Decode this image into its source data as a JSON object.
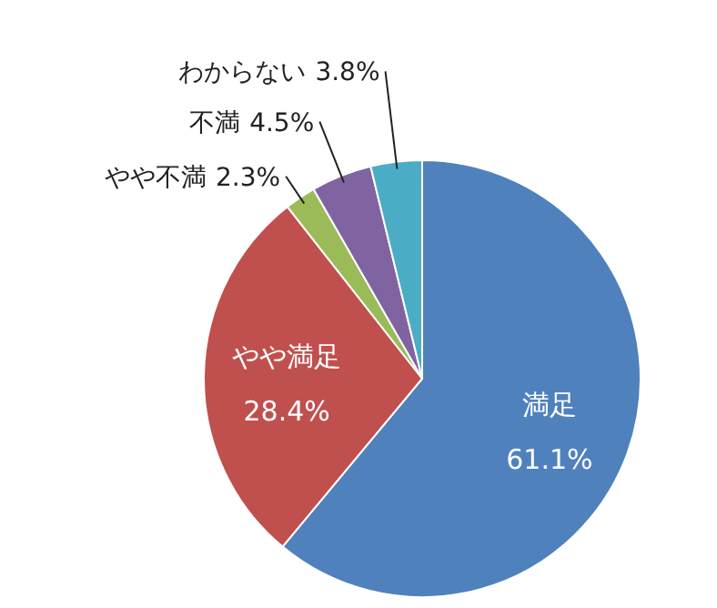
{
  "chart_data": {
    "type": "pie",
    "categories": [
      "満足",
      "やや満足",
      "やや不満",
      "不満",
      "わからない"
    ],
    "values": [
      61.1,
      28.4,
      2.3,
      4.5,
      3.8
    ],
    "value_labels": [
      "61.1%",
      "28.4%",
      "2.3%",
      "4.5%",
      "3.8%"
    ],
    "colors": [
      "#4f81bd",
      "#c0504d",
      "#9bbb59",
      "#8064a2",
      "#4bacc6"
    ]
  }
}
